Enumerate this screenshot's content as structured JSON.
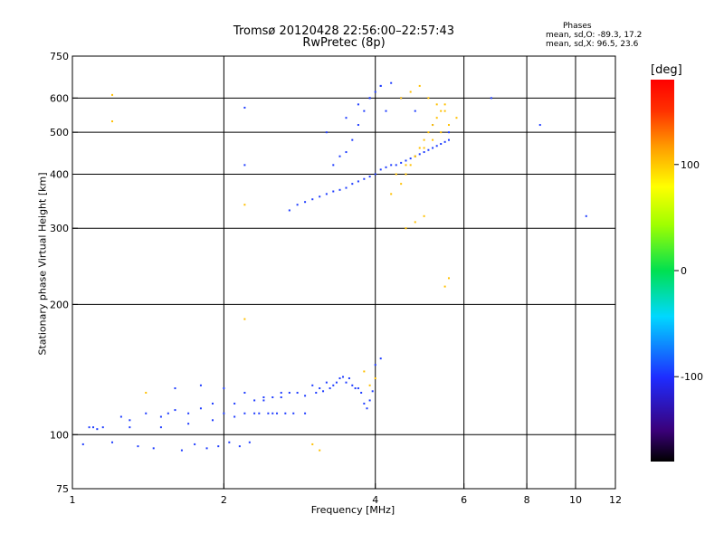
{
  "header": {
    "title": "Tromsø 20120428 22:56:00–22:57:43",
    "subtitle": "RwPretec (8p)"
  },
  "phases": {
    "title": "Phases",
    "line1": "mean, sd,O: -89.3, 17.2",
    "line2": "mean, sd,X:  96.5, 23.6"
  },
  "colorbar": {
    "title": "[deg]",
    "ticks": [
      "100",
      "0",
      "-100"
    ],
    "tick_values": [
      100,
      0,
      -100
    ],
    "range": [
      -180,
      180
    ]
  },
  "chart_data": {
    "type": "scatter",
    "title": "Tromsø 20120428 22:56:00–22:57:43",
    "subtitle": "RwPretec (8p)",
    "xlabel": "Frequency [MHz]",
    "ylabel": "Stationary phase Virtual Height [km]",
    "x_scale": "log",
    "y_scale": "log",
    "xlim": [
      1,
      12
    ],
    "ylim": [
      75,
      750
    ],
    "x_ticks": [
      1,
      2,
      4,
      6,
      8,
      10,
      12
    ],
    "x_tick_labels": [
      "1",
      "2",
      "4",
      "6",
      "8",
      "10",
      "12"
    ],
    "y_ticks": [
      75,
      100,
      200,
      300,
      400,
      500,
      600,
      750
    ],
    "y_tick_labels": [
      "75",
      "100",
      "200",
      "300",
      "400",
      "500",
      "600",
      "750"
    ],
    "grid": true,
    "colorbar_label": "[deg]",
    "series": [
      {
        "name": "O",
        "color": "#1e3cff",
        "x": [
          1.05,
          1.08,
          1.12,
          1.15,
          1.25,
          1.3,
          1.4,
          1.5,
          1.55,
          1.6,
          1.7,
          1.8,
          1.9,
          2.0,
          2.1,
          2.2,
          2.3,
          2.4,
          2.5,
          2.6,
          2.7,
          2.8,
          2.9,
          3.0,
          3.1,
          3.2,
          3.3,
          3.4,
          3.5,
          3.6,
          3.7,
          1.2,
          1.35,
          1.45,
          1.65,
          1.75,
          1.85,
          1.95,
          2.05,
          2.15,
          2.25,
          2.35,
          2.45,
          2.55,
          2.65,
          2.75,
          2.9,
          3.05,
          3.15,
          3.25,
          3.35,
          3.45,
          3.55,
          3.65,
          3.75,
          3.8,
          3.85,
          3.9,
          3.95,
          4.0,
          4.1,
          1.1,
          1.3,
          1.5,
          1.7,
          1.9,
          2.1,
          2.3,
          2.5,
          1.6,
          1.8,
          2.0,
          2.2,
          2.4,
          2.6,
          2.7,
          2.8,
          2.9,
          3.0,
          3.1,
          3.2,
          3.3,
          3.4,
          3.5,
          3.6,
          3.7,
          3.8,
          3.9,
          4.0,
          4.1,
          4.2,
          4.3,
          4.4,
          4.5,
          4.6,
          4.7,
          4.8,
          4.9,
          5.0,
          5.1,
          5.2,
          5.3,
          5.4,
          5.5,
          5.6,
          3.3,
          3.4,
          3.5,
          3.6,
          3.7,
          3.8,
          3.9,
          4.0,
          4.1,
          4.2,
          3.2,
          3.5,
          3.7,
          3.9,
          4.1,
          4.3,
          4.5,
          4.8,
          5.2,
          5.6,
          2.2,
          2.2,
          6.8,
          8.5,
          10.5
        ],
        "y": [
          95,
          104,
          103,
          104,
          110,
          108,
          112,
          110,
          112,
          114,
          112,
          115,
          118,
          112,
          118,
          112,
          120,
          120,
          122,
          122,
          125,
          125,
          123,
          130,
          128,
          132,
          130,
          135,
          132,
          130,
          128,
          96,
          94,
          93,
          92,
          95,
          93,
          94,
          96,
          94,
          96,
          112,
          112,
          112,
          112,
          112,
          112,
          125,
          126,
          128,
          132,
          136,
          135,
          128,
          125,
          118,
          115,
          120,
          126,
          145,
          150,
          104,
          104,
          104,
          106,
          108,
          110,
          112,
          112,
          128,
          130,
          128,
          125,
          122,
          125,
          330,
          340,
          345,
          350,
          355,
          360,
          365,
          368,
          372,
          380,
          385,
          390,
          395,
          400,
          410,
          415,
          420,
          420,
          425,
          430,
          435,
          440,
          445,
          450,
          455,
          460,
          465,
          470,
          475,
          480,
          420,
          440,
          450,
          480,
          520,
          560,
          600,
          620,
          640,
          560,
          500,
          540,
          580,
          600,
          640,
          650,
          600,
          560,
          520,
          500,
          570,
          420,
          600,
          520,
          320
        ],
        "marker_size": 2
      },
      {
        "name": "X",
        "color": "#ffc000",
        "x": [
          4.3,
          4.5,
          4.6,
          4.7,
          4.8,
          4.9,
          5.0,
          5.1,
          5.2,
          5.3,
          5.4,
          5.5,
          4.4,
          4.6,
          4.8,
          5.0,
          5.2,
          5.4,
          5.6,
          5.8,
          4.5,
          4.7,
          4.9,
          5.1,
          5.3,
          5.5,
          4.6,
          4.8,
          5.0,
          5.5,
          5.6,
          3.9,
          4.0,
          3.8,
          3.1,
          3.0,
          1.2,
          1.4,
          2.2,
          2.2,
          1.2
        ],
        "y": [
          360,
          380,
          400,
          420,
          440,
          460,
          480,
          500,
          520,
          540,
          560,
          580,
          400,
          420,
          440,
          460,
          480,
          500,
          520,
          540,
          600,
          620,
          640,
          600,
          580,
          560,
          300,
          310,
          320,
          220,
          230,
          130,
          135,
          140,
          92,
          95,
          530,
          125,
          340,
          185,
          610
        ],
        "marker_size": 2
      }
    ]
  }
}
